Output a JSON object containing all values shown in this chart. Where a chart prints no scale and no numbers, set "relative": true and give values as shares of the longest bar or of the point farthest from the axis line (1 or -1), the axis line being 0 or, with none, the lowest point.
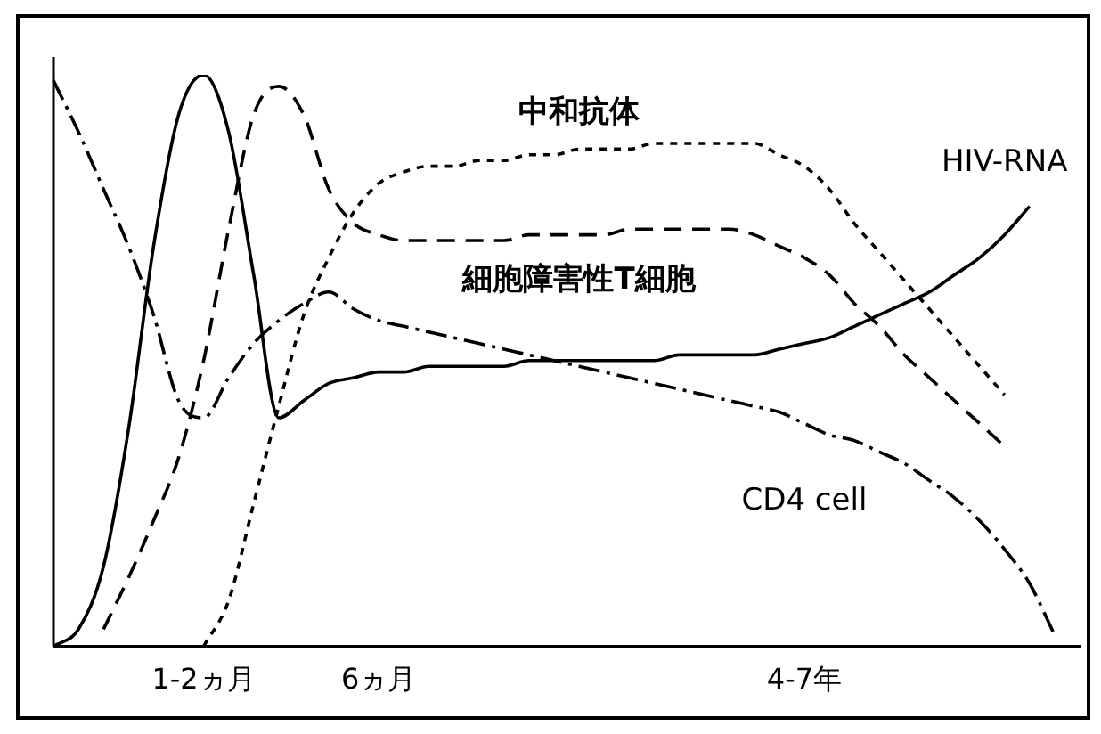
{
  "chart_data": {
    "type": "line",
    "relative": true,
    "legend": false,
    "grid": false,
    "marker": "none",
    "categories": [
      null,
      null,
      null,
      null,
      null,
      null,
      "1-2ヵ月",
      null,
      null,
      null,
      null,
      null,
      null,
      "6ヵ月",
      null,
      null,
      null,
      null,
      null,
      null,
      null,
      null,
      null,
      null,
      null,
      null,
      null,
      null,
      null,
      null,
      "4-7年",
      null,
      null,
      null,
      null,
      null,
      null,
      null,
      null,
      null,
      null,
      null
    ],
    "series": [
      {
        "name": "中和抗体",
        "color": "#000000",
        "line_style": "dotted",
        "values": [
          null,
          null,
          null,
          null,
          null,
          null,
          0,
          0.08,
          0.25,
          0.42,
          0.58,
          0.68,
          0.76,
          0.81,
          0.83,
          0.84,
          0.84,
          0.85,
          0.85,
          0.86,
          0.86,
          0.87,
          0.87,
          0.87,
          0.88,
          0.88,
          0.88,
          0.88,
          0.88,
          0.86,
          0.84,
          0.8,
          0.74,
          0.69,
          0.64,
          0.59,
          0.54,
          0.49,
          0.44,
          null,
          null,
          null
        ]
      },
      {
        "name": "細胞障害性T細胞",
        "color": "#000000",
        "line_style": "dashed",
        "values": [
          null,
          null,
          0.03,
          0.12,
          0.22,
          0.33,
          0.5,
          0.73,
          0.93,
          0.98,
          0.93,
          0.8,
          0.74,
          0.72,
          0.71,
          0.71,
          0.71,
          0.71,
          0.71,
          0.72,
          0.72,
          0.72,
          0.72,
          0.73,
          0.73,
          0.73,
          0.73,
          0.73,
          0.72,
          0.7,
          0.68,
          0.65,
          0.6,
          0.56,
          0.51,
          0.47,
          0.43,
          0.39,
          0.35,
          null,
          null,
          null
        ]
      },
      {
        "name": "HIV-RNA",
        "color": "#000000",
        "line_style": "solid",
        "values": [
          0,
          0.03,
          0.14,
          0.38,
          0.7,
          0.93,
          1,
          0.9,
          0.65,
          0.4,
          0.43,
          0.46,
          0.47,
          0.48,
          0.48,
          0.49,
          0.49,
          0.49,
          0.49,
          0.5,
          0.5,
          0.5,
          0.5,
          0.5,
          0.5,
          0.51,
          0.51,
          0.51,
          0.51,
          0.52,
          0.53,
          0.54,
          0.56,
          0.58,
          0.6,
          0.62,
          0.65,
          0.68,
          0.72,
          0.77,
          null,
          null
        ]
      },
      {
        "name": "CD4 cell",
        "color": "#000000",
        "line_style": "dashdot",
        "values": [
          0.99,
          0.9,
          0.8,
          0.7,
          0.58,
          0.43,
          0.4,
          0.47,
          0.53,
          0.57,
          0.6,
          0.62,
          0.59,
          0.57,
          0.56,
          0.55,
          0.54,
          0.53,
          0.52,
          0.51,
          0.5,
          0.49,
          0.48,
          0.47,
          0.46,
          0.45,
          0.44,
          0.43,
          0.42,
          0.41,
          0.39,
          0.37,
          0.36,
          0.34,
          0.32,
          0.29,
          0.26,
          0.22,
          0.17,
          0.11,
          0.02,
          null
        ]
      }
    ]
  }
}
